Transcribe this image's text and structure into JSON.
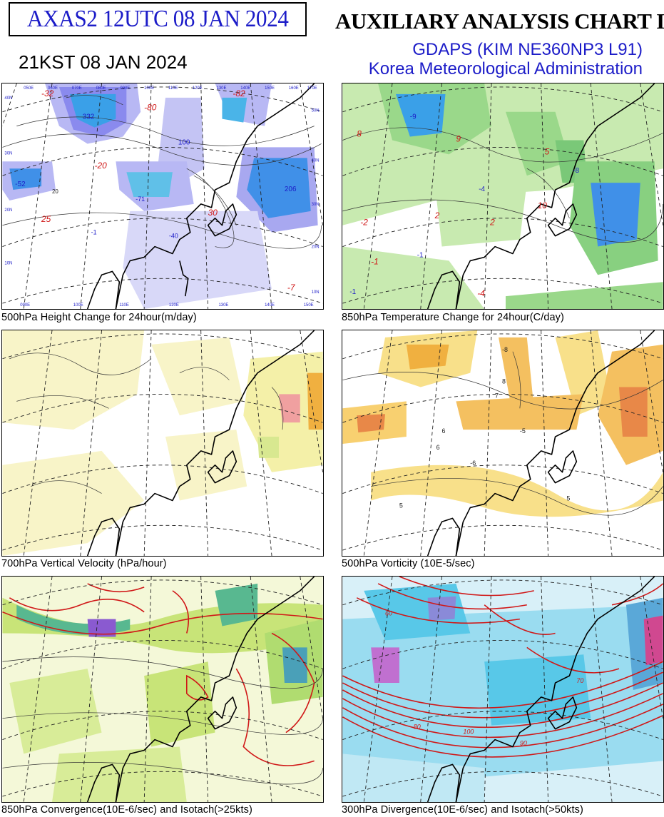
{
  "header": {
    "product_code": "AXAS2  12UTC 08 JAN 2024",
    "valid_time": "21KST 08 JAN 2024",
    "chart_title": "AUXILIARY ANALYSIS CHART II",
    "model": "GDAPS (KIM NE360NP3 L91)",
    "agency": "Korea Meteorological Administration"
  },
  "colors": {
    "height_change": "#8a8aee",
    "temperature_change": "#3cb44a",
    "vertical_velocity": "#f4f0a8",
    "vorticity": "#f0b040",
    "convergence": "#b8e060",
    "divergence": "#58c8e8",
    "isotach": "#d01818",
    "label_blue": "#1c1cc8"
  },
  "panels": [
    {
      "id": "height-change",
      "caption": "500hPa Height Change for 24hour(m/day)",
      "labels": [
        "-32",
        "332",
        "100",
        "-80",
        "-82",
        "206",
        "-52",
        "-20",
        "25",
        "-7",
        "-71",
        "-40",
        "-1",
        "20",
        "30"
      ]
    },
    {
      "id": "temperature-change",
      "caption": "850hPa Temperature Change for 24hour(C/day)",
      "labels": [
        "8",
        "-9",
        "2",
        "-4",
        "-1",
        "-2",
        "9",
        "10",
        "2",
        "-1",
        "-4",
        "-8",
        "5",
        "-1"
      ]
    },
    {
      "id": "vertical-velocity",
      "caption": "700hPa Vertical Velocity (hPa/hour)",
      "labels": []
    },
    {
      "id": "vorticity",
      "caption": "500hPa Vorticity (10E-5/sec)",
      "labels": [
        "7",
        "5",
        "6",
        "-8",
        "-6",
        "5",
        "-5",
        "8",
        "6"
      ]
    },
    {
      "id": "convergence",
      "caption": "850hPa Convergence(10E-6/sec) and Isotach(>25kts)",
      "labels": []
    },
    {
      "id": "divergence",
      "caption": "300hPa Divergence(10E-6/sec) and Isotach(>50kts)",
      "labels": [
        "100",
        "60",
        "80",
        "70",
        "90"
      ]
    }
  ],
  "grid_labels": {
    "top": [
      "050E",
      "060E",
      "070E",
      "080E",
      "090E",
      "100E",
      "110E",
      "120E",
      "130E",
      "140E",
      "150E",
      "160E",
      "170E"
    ],
    "bottom": [
      "090E",
      "100E",
      "110E",
      "120E",
      "130E",
      "140E",
      "150E"
    ],
    "left": [
      "40N",
      "30N",
      "20N",
      "10N"
    ],
    "right": [
      "50N",
      "40N",
      "30N",
      "20N",
      "10N"
    ]
  }
}
